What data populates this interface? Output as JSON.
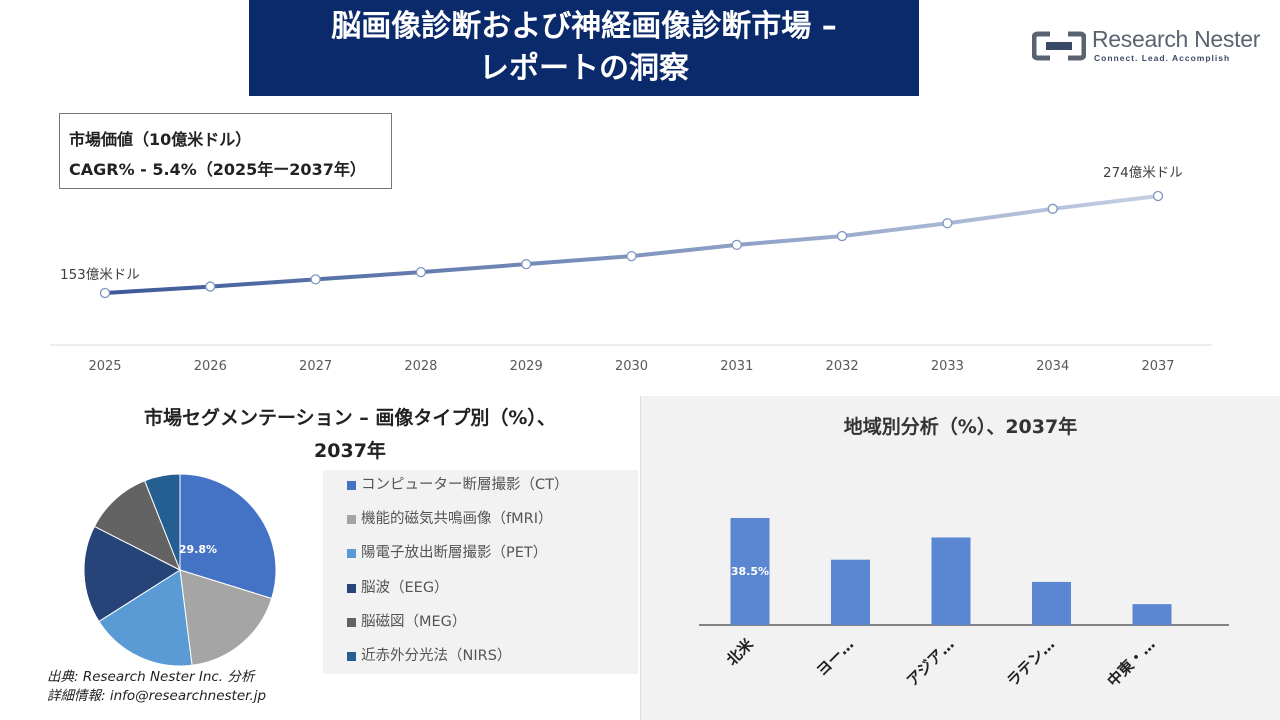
{
  "banner": {
    "title_line1": "脳画像診断および神経画像診断市場 –",
    "title_line2": "レポートの洞察"
  },
  "logo": {
    "name": "Research Nester",
    "tagline": "Connect. Lead. Accomplish"
  },
  "stats": {
    "market_value": "市場価値（10億米ドル）",
    "cagr": "CAGR% - 5.4%（2025年ー2037年）"
  },
  "colors": {
    "banner": "#0b2a6b",
    "line_start": "#3b5998",
    "line_end": "#c4cfe3",
    "bar": "#5b86d1"
  },
  "line_chart": {
    "type": "line",
    "categories": [
      "2025",
      "2026",
      "2027",
      "2028",
      "2029",
      "2030",
      "2031",
      "2032",
      "2033",
      "2034",
      "2037"
    ],
    "values": [
      153,
      161,
      170,
      179,
      189,
      199,
      213,
      224,
      240,
      258,
      274
    ],
    "start_label": "153億米ドル",
    "end_label": "274億米ドル"
  },
  "segmentation": {
    "title_line1": "市場セグメンテーション – 画像タイプ別（%）、",
    "title_line2": "2037年",
    "chart_data": {
      "type": "pie",
      "slices": [
        {
          "label": "コンピューター断層撮影（CT）",
          "value": 29.8,
          "color": "#4472c4",
          "data_label": "29.8%"
        },
        {
          "label": "機能的磁気共鳴画像（fMRI）",
          "value": 18.2,
          "color": "#a5a5a5"
        },
        {
          "label": "陽電子放出断層撮影（PET）",
          "value": 18.0,
          "color": "#5b9bd5"
        },
        {
          "label": "脳波（EEG）",
          "value": 16.5,
          "color": "#264478"
        },
        {
          "label": "脳磁図（MEG）",
          "value": 11.5,
          "color": "#636363"
        },
        {
          "label": "近赤外分光法（NIRS）",
          "value": 6.0,
          "color": "#255e91"
        }
      ]
    }
  },
  "regional": {
    "title": "地域別分析（%）、2037年",
    "chart_data": {
      "type": "bar",
      "categories": [
        "北米",
        "ヨー…",
        "アジア…",
        "ラテン…",
        "中東・…"
      ],
      "values": [
        38.5,
        23.5,
        31.5,
        15.5,
        7.5
      ],
      "data_label": "38.5%",
      "ylim": [
        0,
        45
      ]
    }
  },
  "source": {
    "line1": "出典: Research Nester Inc. 分析",
    "line2": "詳細情報: info@researchnester.jp"
  }
}
